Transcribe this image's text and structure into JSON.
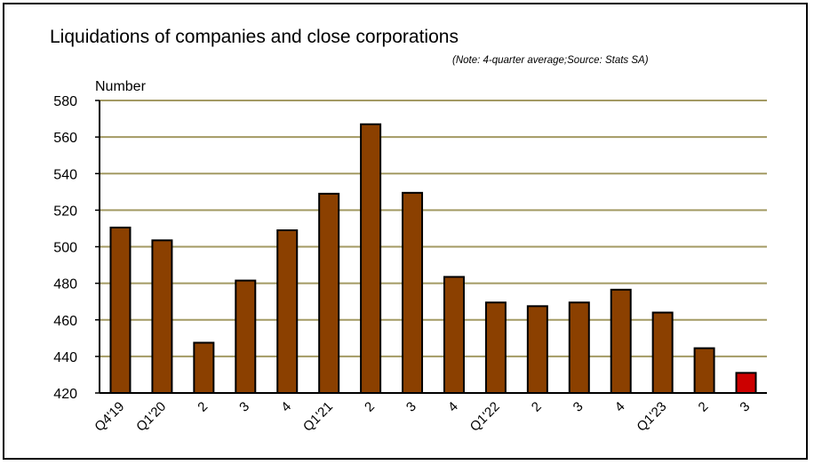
{
  "chart_data": {
    "type": "bar",
    "title": "Liquidations of companies and close corporations",
    "subtitle": "(Note: 4-quarter average;Source: Stats SA)",
    "ylabel": "Number",
    "xlabel": "",
    "ylim": [
      420,
      580
    ],
    "yticks": [
      420,
      440,
      460,
      480,
      500,
      520,
      540,
      560,
      580
    ],
    "grid": true,
    "legend": "none",
    "categories": [
      "Q4'19",
      "Q1'20",
      "2",
      "3",
      "4",
      "Q1'21",
      "2",
      "3",
      "4",
      "Q1'22",
      "2",
      "3",
      "4",
      "Q1'23",
      "2",
      "3"
    ],
    "values": [
      510.5,
      503.5,
      447.5,
      481.5,
      509,
      529,
      567,
      529.5,
      483.5,
      469.5,
      467.5,
      469.5,
      476.5,
      464,
      444.5,
      431
    ],
    "colors": {
      "bar": "#8B4000",
      "highlight": "#CC0000",
      "grid": "#A39A63",
      "axis": "#000000"
    },
    "highlight_index": 15
  }
}
